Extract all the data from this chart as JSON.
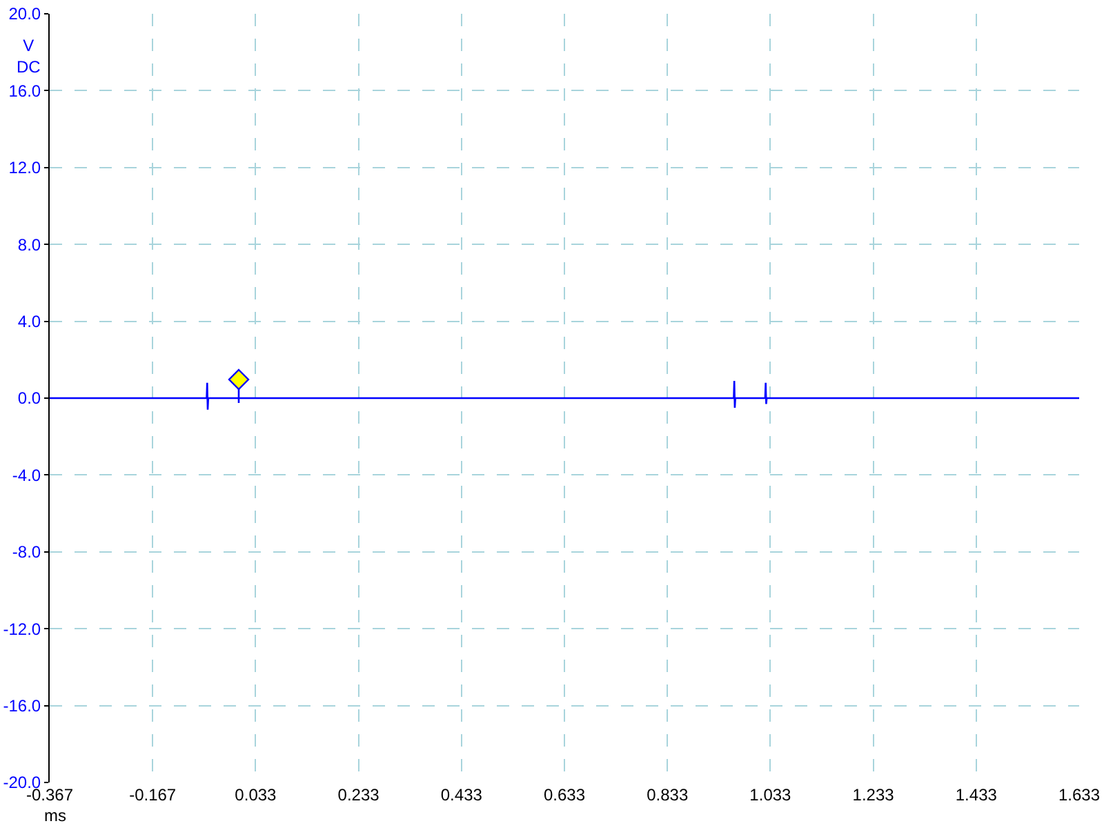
{
  "chart_data": {
    "type": "line",
    "xlabel": "ms",
    "ylabel": "V DC",
    "x": [
      -0.367,
      -0.062,
      -0.061,
      -0.06,
      -0.059,
      0.962,
      0.963,
      0.964,
      0.965,
      1.023,
      1.024,
      1.025,
      1.026,
      1.633
    ],
    "series": [
      {
        "color": "#0000ff",
        "values": [
          0,
          0,
          0.8,
          -0.6,
          0,
          0,
          0.9,
          -0.5,
          0,
          0,
          0.8,
          -0.3,
          0,
          0
        ]
      }
    ],
    "xlim": [
      -0.367,
      1.633
    ],
    "xticks": [
      -0.367,
      -0.167,
      0.033,
      0.233,
      0.433,
      0.633,
      0.833,
      1.033,
      1.233,
      1.433,
      1.633
    ],
    "ylim": [
      -20,
      20
    ],
    "yticks": [
      {
        "value": -20,
        "label": "-20.0"
      },
      {
        "value": -16,
        "label": "-16.0"
      },
      {
        "value": -12,
        "label": "-12.0"
      },
      {
        "value": -8,
        "label": "-8.0"
      },
      {
        "value": -4,
        "label": "-4.0"
      },
      {
        "value": 0,
        "label": "0.0"
      },
      {
        "value": 4,
        "label": "4.0"
      },
      {
        "value": 8,
        "label": "8.0"
      },
      {
        "value": 12,
        "label": "12.0"
      },
      {
        "value": 16,
        "label": "16.0"
      },
      {
        "value": 20,
        "label": "20.0"
      }
    ],
    "grid": true,
    "marker": "none",
    "line_style": "solid"
  }
}
